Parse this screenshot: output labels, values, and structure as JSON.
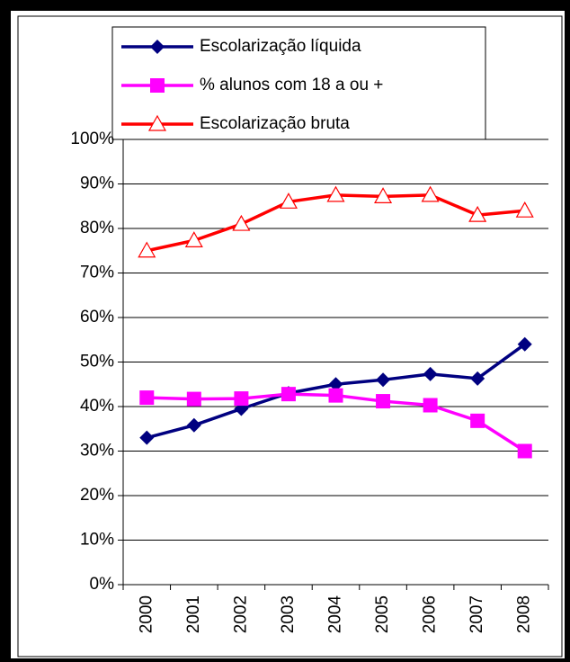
{
  "chart_data": {
    "type": "line",
    "categories": [
      "2000",
      "2001",
      "2002",
      "2003",
      "2004",
      "2005",
      "2006",
      "2007",
      "2008"
    ],
    "series": [
      {
        "name": "Escolarização líquida",
        "color": "#000080",
        "marker": "diamond",
        "values": [
          33,
          35.8,
          39.5,
          43,
          45,
          46,
          47.3,
          46.3,
          54
        ]
      },
      {
        "name": "% alunos com 18 a ou +",
        "color": "#FF00FF",
        "marker": "square",
        "values": [
          42,
          41.7,
          41.8,
          42.8,
          42.5,
          41.2,
          40.3,
          36.8,
          30
        ]
      },
      {
        "name": "Escolarização bruta",
        "color": "#FF0000",
        "marker": "triangle",
        "values": [
          75,
          77.3,
          81,
          86,
          87.5,
          87.2,
          87.5,
          83,
          84
        ]
      }
    ],
    "ylim": [
      0,
      100
    ],
    "yticks": [
      {
        "value": 0,
        "label": "0%"
      },
      {
        "value": 10,
        "label": "10%"
      },
      {
        "value": 20,
        "label": "20%"
      },
      {
        "value": 30,
        "label": "30%"
      },
      {
        "value": 40,
        "label": "40%"
      },
      {
        "value": 50,
        "label": "50%"
      },
      {
        "value": 60,
        "label": "60%"
      },
      {
        "value": 70,
        "label": "70%"
      },
      {
        "value": 80,
        "label": "80%"
      },
      {
        "value": 90,
        "label": "90%"
      },
      {
        "value": 100,
        "label": "100%"
      }
    ],
    "grid": true
  }
}
